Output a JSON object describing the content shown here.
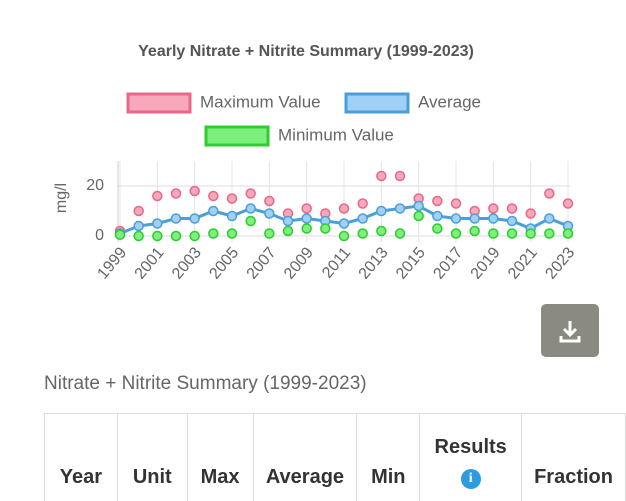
{
  "chart_data": {
    "type": "line",
    "title": "Yearly Nitrate + Nitrite Summary (1999-2023)",
    "y_label": "mg/l",
    "x": [
      1999,
      2000,
      2001,
      2002,
      2003,
      2004,
      2005,
      2006,
      2007,
      2008,
      2009,
      2010,
      2011,
      2012,
      2013,
      2014,
      2015,
      2016,
      2017,
      2018,
      2019,
      2020,
      2021,
      2022,
      2023
    ],
    "xlim": [
      1999,
      2023
    ],
    "xticks": [
      1999,
      2001,
      2003,
      2005,
      2007,
      2009,
      2011,
      2013,
      2015,
      2017,
      2019,
      2021,
      2023
    ],
    "ylim": [
      0,
      30
    ],
    "yticks": [
      0,
      20
    ],
    "grid": true,
    "series": [
      {
        "name": "Maximum Value",
        "color": "#e8688a",
        "fill": "#f7a8bb",
        "line": false,
        "values": [
          2,
          10,
          16,
          17,
          18,
          16,
          15,
          17,
          14,
          9,
          11,
          9,
          11,
          13,
          24,
          24,
          15,
          14,
          13,
          10,
          11,
          11,
          9,
          17,
          13
        ]
      },
      {
        "name": "Average",
        "color": "#4a9fd8",
        "fill": "#a0d0f5",
        "line": true,
        "values": [
          1,
          4,
          5,
          7,
          7,
          10,
          8,
          11,
          9,
          6,
          7,
          6,
          5,
          7,
          10,
          11,
          12,
          8,
          7,
          7,
          7,
          6,
          3,
          7,
          4
        ]
      },
      {
        "name": "Minimum Value",
        "color": "#2ecc2e",
        "fill": "#7ef07e",
        "line": false,
        "values": [
          0.5,
          0,
          0,
          0,
          0,
          1,
          1,
          6,
          1,
          2,
          3,
          3,
          0,
          1,
          2,
          1,
          8,
          3,
          1,
          2,
          1,
          1,
          1,
          1,
          1
        ]
      }
    ]
  },
  "table": {
    "title": "Nitrate + Nitrite Summary (1999-2023)",
    "header": [
      "Year",
      "Unit",
      "Max",
      "Average",
      "Min",
      "Results",
      "Fraction"
    ]
  }
}
